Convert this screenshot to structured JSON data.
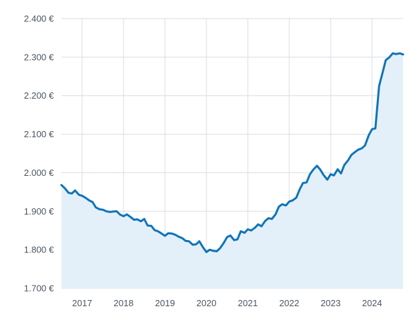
{
  "chart_data": {
    "type": "area",
    "title": "",
    "xlabel": "",
    "ylabel": "",
    "ylim": [
      1700,
      2400
    ],
    "xlim": [
      2016.5,
      2024.75
    ],
    "y_ticks": [
      1700,
      1800,
      1900,
      2000,
      2100,
      2200,
      2300,
      2400
    ],
    "y_tick_labels": [
      "1.700 €",
      "1.800 €",
      "1.900 €",
      "2.000 €",
      "2.100 €",
      "2.200 €",
      "2.300 €",
      "2.400 €"
    ],
    "x_ticks": [
      2017,
      2018,
      2019,
      2020,
      2021,
      2022,
      2023,
      2024
    ],
    "x_tick_labels": [
      "2017",
      "2018",
      "2019",
      "2020",
      "2021",
      "2022",
      "2023",
      "2024"
    ],
    "grid": true,
    "colors": {
      "line": "#0f74b8",
      "fill": "#e4f0f9",
      "grid": "#d9dde3",
      "text": "#4a5563"
    },
    "series": [
      {
        "name": "",
        "x": [
          2016.5,
          2016.58,
          2016.67,
          2016.75,
          2016.83,
          2016.92,
          2017.0,
          2017.08,
          2017.17,
          2017.25,
          2017.33,
          2017.42,
          2017.5,
          2017.58,
          2017.67,
          2017.75,
          2017.83,
          2017.92,
          2018.0,
          2018.08,
          2018.17,
          2018.25,
          2018.33,
          2018.42,
          2018.5,
          2018.58,
          2018.67,
          2018.75,
          2018.83,
          2018.92,
          2019.0,
          2019.08,
          2019.17,
          2019.25,
          2019.33,
          2019.42,
          2019.5,
          2019.58,
          2019.67,
          2019.75,
          2019.83,
          2019.92,
          2020.0,
          2020.08,
          2020.17,
          2020.25,
          2020.33,
          2020.42,
          2020.5,
          2020.58,
          2020.67,
          2020.75,
          2020.83,
          2020.92,
          2021.0,
          2021.08,
          2021.17,
          2021.25,
          2021.33,
          2021.42,
          2021.5,
          2021.58,
          2021.67,
          2021.75,
          2021.83,
          2021.92,
          2022.0,
          2022.08,
          2022.17,
          2022.25,
          2022.33,
          2022.42,
          2022.5,
          2022.58,
          2022.67,
          2022.75,
          2022.83,
          2022.92,
          2023.0,
          2023.08,
          2023.17,
          2023.25,
          2023.33,
          2023.42,
          2023.5,
          2023.58,
          2023.67,
          2023.75,
          2023.83,
          2023.92,
          2024.0,
          2024.08,
          2024.17,
          2024.25,
          2024.33,
          2024.42,
          2024.5,
          2024.58,
          2024.67,
          2024.75
        ],
        "values": [
          1968,
          1960,
          1948,
          1946,
          1954,
          1943,
          1940,
          1935,
          1928,
          1924,
          1910,
          1905,
          1904,
          1900,
          1898,
          1899,
          1900,
          1891,
          1887,
          1892,
          1885,
          1878,
          1879,
          1874,
          1880,
          1863,
          1862,
          1851,
          1848,
          1842,
          1836,
          1843,
          1842,
          1839,
          1834,
          1830,
          1823,
          1822,
          1813,
          1814,
          1822,
          1806,
          1794,
          1800,
          1797,
          1796,
          1804,
          1818,
          1833,
          1837,
          1825,
          1827,
          1848,
          1844,
          1853,
          1850,
          1857,
          1866,
          1861,
          1875,
          1882,
          1880,
          1892,
          1912,
          1918,
          1915,
          1925,
          1928,
          1935,
          1956,
          1973,
          1975,
          1996,
          2008,
          2018,
          2008,
          1994,
          1982,
          1996,
          1993,
          2009,
          1998,
          2020,
          2032,
          2046,
          2053,
          2060,
          2063,
          2071,
          2097,
          2113,
          2115,
          2225,
          2258,
          2292,
          2300,
          2310,
          2308,
          2310,
          2307
        ]
      }
    ]
  }
}
